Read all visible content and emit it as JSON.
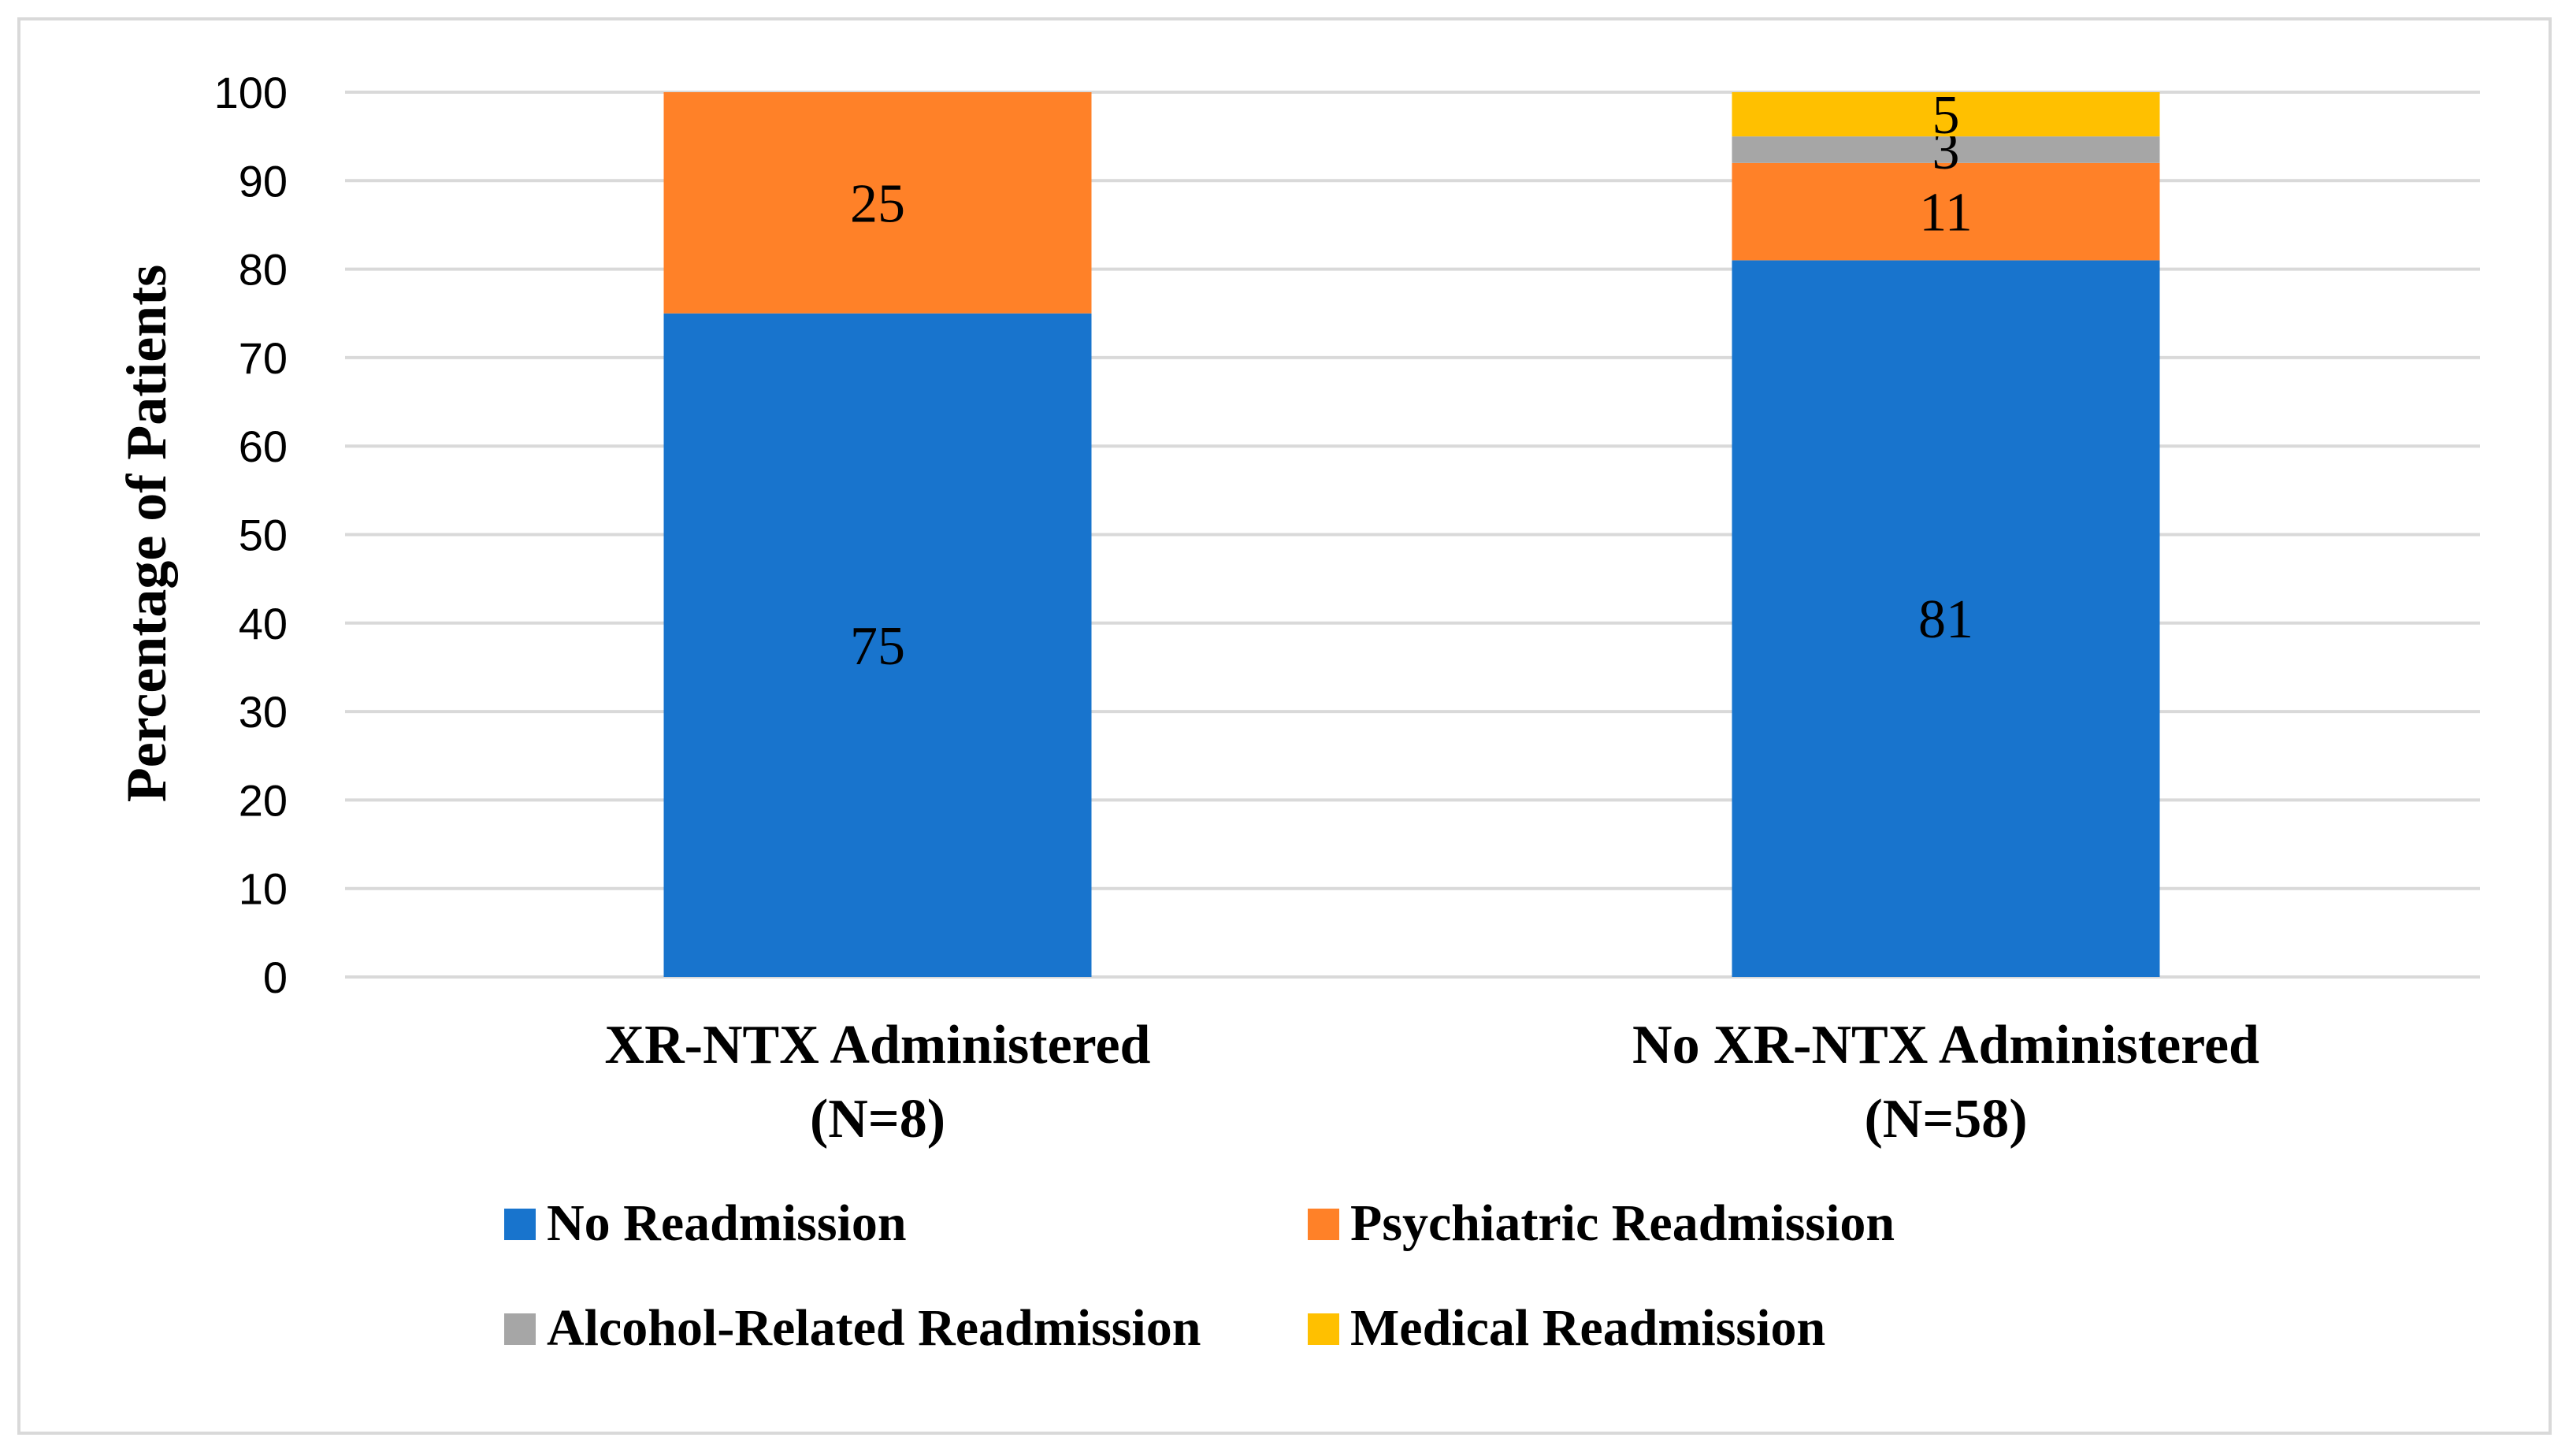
{
  "chart_data": {
    "type": "bar",
    "stacked": true,
    "title": "",
    "xlabel": "",
    "ylabel": "Percentage of Patients",
    "ylim": [
      0,
      100
    ],
    "yticks": [
      0,
      10,
      20,
      30,
      40,
      50,
      60,
      70,
      80,
      90,
      100
    ],
    "grid": true,
    "categories": [
      [
        "XR-NTX Administered",
        "(N=8)"
      ],
      [
        "No XR-NTX Administered",
        "(N=58)"
      ]
    ],
    "series": [
      {
        "name": "No Readmission",
        "color": "#1874CD",
        "values": [
          75,
          81
        ],
        "labels": [
          "75",
          "81"
        ]
      },
      {
        "name": "Psychiatric Readmission",
        "color": "#FF8128",
        "values": [
          25,
          11
        ],
        "labels": [
          "25",
          "11"
        ]
      },
      {
        "name": "Alcohol-Related Readmission",
        "color": "#A6A6A6",
        "values": [
          0,
          3
        ],
        "labels": [
          "",
          "3"
        ]
      },
      {
        "name": "Medical Readmission",
        "color": "#FFC000",
        "values": [
          0,
          5
        ],
        "labels": [
          "",
          "5"
        ]
      }
    ],
    "legend_position": "bottom"
  }
}
